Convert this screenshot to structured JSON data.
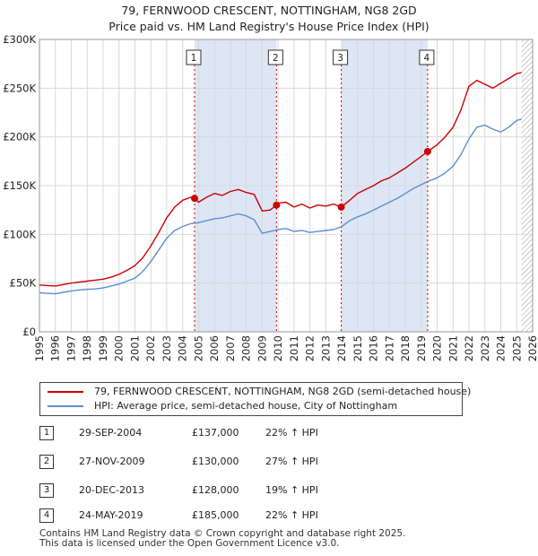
{
  "title_line1": "79, FERNWOOD CRESCENT, NOTTINGHAM, NG8 2GD",
  "title_line2": "Price paid vs. HM Land Registry's House Price Index (HPI)",
  "legend": {
    "property": "79, FERNWOOD CRESCENT, NOTTINGHAM, NG8 2GD (semi-detached house)",
    "hpi": "HPI: Average price, semi-detached house, City of Nottingham"
  },
  "colors": {
    "property": "#cc0000",
    "hpi": "#5b8fcf",
    "shade": "#dce6f5",
    "grid": "#d9d9d9",
    "marker_line": "#cc0000"
  },
  "transactions": [
    {
      "num": "1",
      "date": "29-SEP-2004",
      "price": "£137,000",
      "hpi": "22% ↑ HPI"
    },
    {
      "num": "2",
      "date": "27-NOV-2009",
      "price": "£130,000",
      "hpi": "27% ↑ HPI"
    },
    {
      "num": "3",
      "date": "20-DEC-2013",
      "price": "£128,000",
      "hpi": "19% ↑ HPI"
    },
    {
      "num": "4",
      "date": "24-MAY-2019",
      "price": "£185,000",
      "hpi": "22% ↑ HPI"
    }
  ],
  "footer_line1": "Contains HM Land Registry data © Crown copyright and database right 2025.",
  "footer_line2": "This data is licensed under the Open Government Licence v3.0.",
  "chart_data": {
    "type": "line",
    "xlim": [
      1995,
      2026
    ],
    "ylim": [
      0,
      300000
    ],
    "x_ticks": [
      1995,
      1996,
      1997,
      1998,
      1999,
      2000,
      2001,
      2002,
      2003,
      2004,
      2005,
      2006,
      2007,
      2008,
      2009,
      2010,
      2011,
      2012,
      2013,
      2014,
      2015,
      2016,
      2017,
      2018,
      2019,
      2020,
      2021,
      2022,
      2023,
      2024,
      2025,
      2026
    ],
    "y_ticks": [
      0,
      50000,
      100000,
      150000,
      200000,
      250000,
      300000
    ],
    "y_tick_labels": [
      "£0",
      "£50K",
      "£100K",
      "£150K",
      "£200K",
      "£250K",
      "£300K"
    ],
    "shaded_spans": [
      [
        2004.75,
        2009.9
      ],
      [
        2013.97,
        2019.4
      ]
    ],
    "hatched_from": 2025.3,
    "sales": [
      {
        "label": "1",
        "x": 2004.75,
        "y": 137000
      },
      {
        "label": "2",
        "x": 2009.9,
        "y": 130000
      },
      {
        "label": "3",
        "x": 2013.97,
        "y": 128000
      },
      {
        "label": "4",
        "x": 2019.4,
        "y": 185000
      }
    ],
    "series": [
      {
        "name": "79, FERNWOOD CRESCENT, NOTTINGHAM, NG8 2GD (semi-detached house)",
        "x": [
          1995,
          1995.5,
          1996,
          1996.5,
          1997,
          1997.5,
          1998,
          1998.5,
          1999,
          1999.5,
          2000,
          2000.5,
          2001,
          2001.5,
          2002,
          2002.5,
          2003,
          2003.5,
          2004,
          2004.5,
          2004.75,
          2005,
          2005.5,
          2006,
          2006.5,
          2007,
          2007.5,
          2008,
          2008.5,
          2009,
          2009.5,
          2009.9,
          2010,
          2010.5,
          2011,
          2011.5,
          2012,
          2012.5,
          2013,
          2013.5,
          2013.97,
          2014.5,
          2015,
          2015.5,
          2016,
          2016.5,
          2017,
          2017.5,
          2018,
          2018.5,
          2019,
          2019.4,
          2020,
          2020.5,
          2021,
          2021.5,
          2022,
          2022.5,
          2023,
          2023.5,
          2024,
          2024.5,
          2025,
          2025.3
        ],
        "y": [
          48000,
          47500,
          47000,
          48500,
          50000,
          51000,
          52000,
          53000,
          54000,
          56000,
          59000,
          63000,
          68000,
          76000,
          88000,
          102000,
          117000,
          128000,
          135000,
          138000,
          137000,
          133000,
          138000,
          142000,
          140000,
          144000,
          146000,
          143000,
          141000,
          124000,
          125000,
          130000,
          132000,
          133000,
          128000,
          131000,
          127000,
          130000,
          129000,
          131000,
          128000,
          135000,
          142000,
          146000,
          150000,
          155000,
          158000,
          163000,
          168000,
          174000,
          180000,
          185000,
          192000,
          200000,
          210000,
          228000,
          252000,
          258000,
          254000,
          250000,
          255000,
          260000,
          265000,
          266000
        ]
      },
      {
        "name": "HPI: Average price, semi-detached house, City of Nottingham",
        "x": [
          1995,
          1995.5,
          1996,
          1996.5,
          1997,
          1997.5,
          1998,
          1998.5,
          1999,
          1999.5,
          2000,
          2000.5,
          2001,
          2001.5,
          2002,
          2002.5,
          2003,
          2003.5,
          2004,
          2004.5,
          2005,
          2005.5,
          2006,
          2006.5,
          2007,
          2007.5,
          2008,
          2008.5,
          2009,
          2009.5,
          2010,
          2010.5,
          2011,
          2011.5,
          2012,
          2012.5,
          2013,
          2013.5,
          2014,
          2014.5,
          2015,
          2015.5,
          2016,
          2016.5,
          2017,
          2017.5,
          2018,
          2018.5,
          2019,
          2019.5,
          2020,
          2020.5,
          2021,
          2021.5,
          2022,
          2022.5,
          2023,
          2023.5,
          2024,
          2024.5,
          2025,
          2025.3
        ],
        "y": [
          40000,
          39500,
          39000,
          40500,
          42000,
          43000,
          43500,
          44000,
          45000,
          47000,
          49000,
          52000,
          55000,
          62000,
          72000,
          84000,
          96000,
          104000,
          108000,
          111000,
          112000,
          114000,
          116000,
          117000,
          119000,
          121000,
          119000,
          115000,
          101000,
          103000,
          105000,
          106000,
          103000,
          104000,
          102000,
          103000,
          104000,
          105000,
          108000,
          114000,
          118000,
          121000,
          125000,
          129000,
          133000,
          137000,
          142000,
          147000,
          151000,
          155000,
          158000,
          163000,
          170000,
          182000,
          198000,
          210000,
          212000,
          208000,
          205000,
          210000,
          217000,
          218000
        ]
      }
    ]
  }
}
